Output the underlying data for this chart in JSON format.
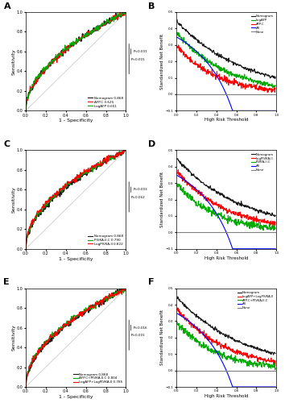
{
  "fig_width": 3.54,
  "fig_height": 5.0,
  "dpi": 100,
  "background_color": "#ffffff",
  "roc_panels": {
    "A": {
      "xlabel": "1 - Specificity",
      "ylabel": "Sensitivity",
      "legend": [
        "Nomogram 0.868",
        "AFP.C 0.625",
        "LogAFP 0.651"
      ],
      "colors": [
        "#1a1a1a",
        "#ff0000",
        "#00aa00"
      ],
      "pval_text1": "P<0.001",
      "pval_text2": "P<0.001"
    },
    "C": {
      "xlabel": "1 - Specificity",
      "ylabel": "Sensitivity",
      "legend": [
        "Nomogram 0.868",
        "PIVKA-II.C 0.790",
        "LogPIVKA-II 0.822"
      ],
      "colors": [
        "#1a1a1a",
        "#00aa00",
        "#ff0000"
      ],
      "pval_text1": "P=0.003",
      "pval_text2": "P=0.062"
    },
    "E": {
      "xlabel": "1 - Specificity",
      "ylabel": "Sensitivity",
      "legend": [
        "Nomogram 0.868",
        "AFP.C+PIVKA-II.C 0.804",
        "LogAFP+LogPIVKA-II 0.785"
      ],
      "colors": [
        "#1a1a1a",
        "#00aa00",
        "#ff0000"
      ],
      "pval_text1": "P=0.016",
      "pval_text2": "P=0.001"
    }
  },
  "dca_panels": {
    "B": {
      "xlabel": "High Risk Threshold",
      "ylabel": "Standardized Net Benefit",
      "legend": [
        "Nomogram",
        "LogAFP",
        "AFP.C",
        "All",
        "None"
      ],
      "colors": [
        "#1a1a1a",
        "#00aa00",
        "#ff0000",
        "#0000ff",
        "#808080"
      ]
    },
    "D": {
      "xlabel": "High Risk Threshold",
      "ylabel": "Standardized Net Benefit",
      "legend": [
        "Nomogram",
        "LogPIVKA-II",
        "PIVKA-II.C",
        "All",
        "None"
      ],
      "colors": [
        "#1a1a1a",
        "#ff0000",
        "#00aa00",
        "#0000ff",
        "#808080"
      ]
    },
    "F": {
      "xlabel": "High Risk Threshold",
      "ylabel": "Standardized Net Benefit",
      "legend": [
        "Nomogram",
        "LogAFP+LogPIVKA-II",
        "AFP.C+PIVKA-II.C",
        "All",
        "None"
      ],
      "colors": [
        "#1a1a1a",
        "#ff0000",
        "#00aa00",
        "#0000ff",
        "#808080"
      ]
    }
  },
  "roc_aurocs": {
    "A": [
      0.868,
      0.625,
      0.651
    ],
    "C": [
      0.868,
      0.79,
      0.822
    ],
    "E": [
      0.868,
      0.804,
      0.785
    ]
  }
}
